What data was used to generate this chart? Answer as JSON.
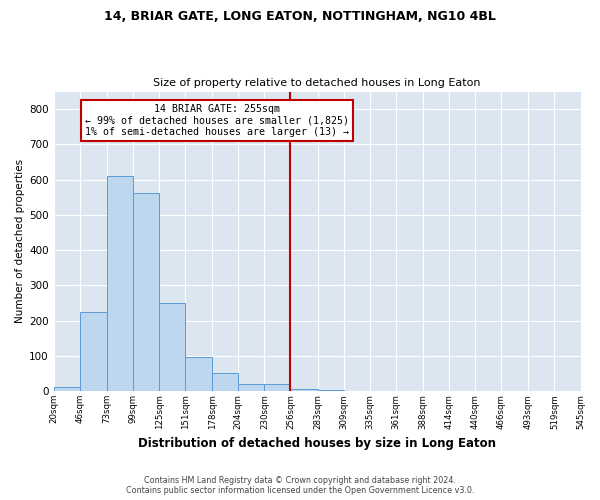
{
  "title1": "14, BRIAR GATE, LONG EATON, NOTTINGHAM, NG10 4BL",
  "title2": "Size of property relative to detached houses in Long Eaton",
  "xlabel": "Distribution of detached houses by size in Long Eaton",
  "ylabel": "Number of detached properties",
  "footer1": "Contains HM Land Registry data © Crown copyright and database right 2024.",
  "footer2": "Contains public sector information licensed under the Open Government Licence v3.0.",
  "annotation_line1": "14 BRIAR GATE: 255sqm",
  "annotation_line2": "← 99% of detached houses are smaller (1,825)",
  "annotation_line3": "1% of semi-detached houses are larger (13) →",
  "property_size": 255,
  "bin_edges": [
    20,
    46,
    73,
    99,
    125,
    151,
    178,
    204,
    230,
    256,
    283,
    309,
    335,
    361,
    388,
    414,
    440,
    466,
    493,
    519,
    545
  ],
  "bar_heights": [
    10,
    224,
    609,
    562,
    250,
    97,
    50,
    20,
    20,
    5,
    3,
    0,
    0,
    0,
    0,
    0,
    0,
    0,
    0,
    0
  ],
  "bar_color": "#bdd7ee",
  "bar_edge_color": "#5b9bd5",
  "vline_color": "#c00000",
  "vline_x": 256,
  "annotation_box_color": "#c00000",
  "background_color": "#dce6f1",
  "ylim": [
    0,
    850
  ],
  "yticks": [
    0,
    100,
    200,
    300,
    400,
    500,
    600,
    700,
    800
  ],
  "figwidth": 6.0,
  "figheight": 5.0,
  "dpi": 100
}
